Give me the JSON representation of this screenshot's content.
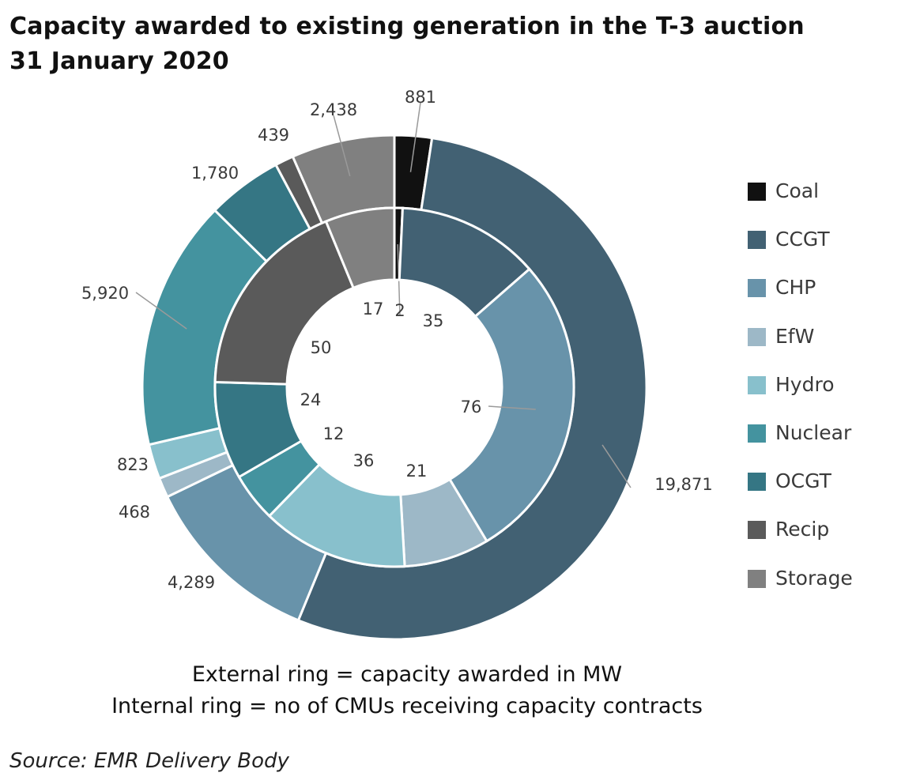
{
  "chart_data": {
    "type": "donut",
    "title_lines": [
      "Capacity awarded to existing generation in the T-3 auction",
      "31 January 2020"
    ],
    "categories": [
      "Coal",
      "CCGT",
      "CHP",
      "EfW",
      "Hydro",
      "Nuclear",
      "OCGT",
      "Recip",
      "Storage"
    ],
    "colors": [
      "#111111",
      "#426173",
      "#6893aa",
      "#9db8c7",
      "#88c0cc",
      "#44939f",
      "#357684",
      "#5a5a5a",
      "#808080"
    ],
    "series": [
      {
        "ring": "outer",
        "values": [
          881,
          19871,
          4289,
          468,
          823,
          5920,
          1780,
          439,
          2438
        ],
        "labels": [
          "881",
          "19,871",
          "4,289",
          "468",
          "823",
          "5,920",
          "1,780",
          "439",
          "2,438"
        ]
      },
      {
        "ring": "inner",
        "values": [
          2,
          35,
          76,
          21,
          36,
          12,
          24,
          50,
          17
        ],
        "labels": [
          "2",
          "35",
          "76",
          "21",
          "36",
          "12",
          "24",
          "50",
          "17"
        ]
      }
    ],
    "legend_position": "right"
  },
  "notes": {
    "line1": "External ring = capacity awarded in MW",
    "line2": "Internal ring = no of CMUs receiving capacity contracts"
  },
  "source": "Source: EMR Delivery Body"
}
